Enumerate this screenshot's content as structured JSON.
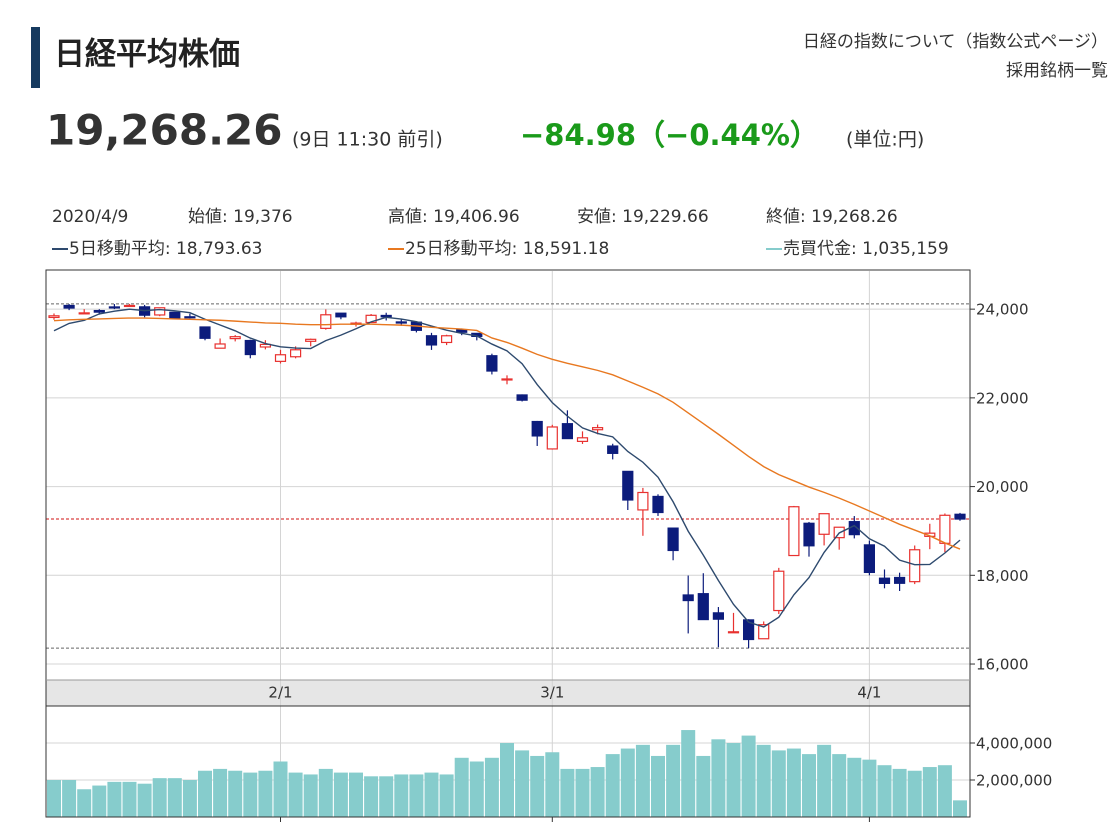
{
  "header": {
    "title": "日経平均株価",
    "links": [
      "日経の指数について（指数公式ページ）",
      "採用銘柄一覧"
    ],
    "price": "19,268.26",
    "time": "(9日 11:30 前引)",
    "change": "−84.98（−0.44%）",
    "unit": "(単位:円)"
  },
  "chart_data": [
    {
      "type": "candlestick",
      "date_label": "2020/4/9",
      "ohlc_labels": [
        "始値: 19,376",
        "高値: 19,406.96",
        "安値: 19,229.66",
        "終値: 19,268.26"
      ],
      "categories": [
        null,
        null,
        null,
        null,
        null,
        null,
        null,
        null,
        null,
        null,
        null,
        null,
        null,
        null,
        null,
        "2/1",
        null,
        null,
        null,
        null,
        null,
        null,
        null,
        null,
        null,
        null,
        null,
        null,
        null,
        null,
        null,
        null,
        null,
        "3/1",
        null,
        null,
        null,
        null,
        null,
        null,
        null,
        null,
        null,
        null,
        null,
        null,
        null,
        null,
        null,
        null,
        null,
        null,
        null,
        null,
        "4/1",
        null,
        null,
        null,
        null,
        null,
        null
      ],
      "open": [
        23813,
        24083,
        23916,
        23968,
        24050,
        24079,
        24052,
        23869,
        23929,
        23828,
        23598,
        23120,
        23336,
        23293,
        23147,
        22823,
        22927,
        23275,
        23567,
        23909,
        23658,
        23699,
        23858,
        23712,
        23706,
        23400,
        23249,
        23533,
        23454,
        22950,
        22417,
        22066,
        21467,
        20849,
        21418,
        21019,
        21282,
        20914,
        20343,
        19474,
        19778,
        19064,
        17557,
        17586,
        17154,
        16726,
        16995,
        16570,
        17206,
        18446,
        19173,
        18925,
        18849,
        19210,
        18686,
        17935,
        17951,
        17857,
        18878,
        18721,
        19376
      ],
      "high": [
        23903,
        24115,
        24000,
        23999,
        24115,
        24118,
        24096,
        24031,
        23933,
        23897,
        23605,
        23339,
        23415,
        23311,
        23300,
        23084,
        23161,
        23336,
        23995,
        23909,
        23717,
        23891,
        23919,
        23788,
        23706,
        23466,
        23423,
        23565,
        23454,
        22996,
        22508,
        22078,
        21480,
        21393,
        21719,
        21245,
        21399,
        20966,
        20347,
        19970,
        19826,
        19064,
        17995,
        18047,
        17285,
        17153,
        17009,
        16960,
        18168,
        19564,
        19203,
        19389,
        19085,
        19336,
        18784,
        18132,
        18059,
        18672,
        19162,
        19394,
        19406.96
      ],
      "low": [
        23761,
        23978,
        23901,
        23876,
        24001,
        24050,
        23816,
        23841,
        23769,
        23790,
        23298,
        23115,
        23273,
        22892,
        23093,
        22775,
        22891,
        23163,
        23537,
        23772,
        23607,
        23698,
        23745,
        23624,
        23475,
        23081,
        23190,
        23413,
        23296,
        22528,
        22306,
        21919,
        20916,
        20834,
        21091,
        20961,
        21179,
        20613,
        19472,
        18891,
        19338,
        18339,
        16690,
        17002,
        16379,
        16726,
        16358,
        16570,
        17128,
        18446,
        18421,
        18674,
        18578,
        18832,
        18000,
        17707,
        17646,
        17802,
        18589,
        18521,
        19229.66
      ],
      "close": [
        23850,
        24025,
        23916,
        23933,
        24041,
        24083,
        23864,
        24031,
        23795,
        23827,
        23343,
        23215,
        23379,
        22977,
        23205,
        22972,
        23084,
        23320,
        23873,
        23827,
        23685,
        23861,
        23827,
        23687,
        23523,
        23193,
        23400,
        23479,
        23386,
        22605,
        22426,
        21948,
        21142,
        21344,
        21082,
        21100,
        21329,
        20749,
        19698,
        19867,
        19416,
        18560,
        17431,
        17002,
        17011,
        16727,
        16553,
        16887,
        18092,
        19546,
        18665,
        19389,
        19084,
        18917,
        18065,
        17818,
        17820,
        18576,
        18950,
        19353,
        19268.26
      ],
      "up_color": "#e8312f",
      "down_color": "#0c1c7c",
      "series": [
        {
          "name": "5日移動平均: 18,793.63",
          "color": "#2e4a6e",
          "values": [
            23514,
            23679,
            23747,
            23893,
            23953,
            24000,
            23967,
            23990,
            23963,
            23920,
            23772,
            23642,
            23512,
            23348,
            23224,
            23150,
            23123,
            23112,
            23291,
            23415,
            23558,
            23713,
            23815,
            23777,
            23717,
            23618,
            23526,
            23456,
            23396,
            23213,
            23059,
            22769,
            22301,
            21893,
            21588,
            21323,
            21199,
            21121,
            20792,
            20549,
            20212,
            19658,
            18994,
            18455,
            17884,
            17346,
            16945,
            16836,
            17054,
            17561,
            17949,
            18516,
            18955,
            19120,
            18824,
            18655,
            18341,
            18239,
            18246,
            18503,
            18793.63
          ]
        },
        {
          "name": "25日移動平均: 18,591.18",
          "color": "#e87820",
          "values": [
            23740,
            23760,
            23770,
            23780,
            23790,
            23800,
            23800,
            23790,
            23780,
            23770,
            23760,
            23750,
            23730,
            23710,
            23690,
            23680,
            23660,
            23650,
            23650,
            23660,
            23660,
            23660,
            23650,
            23640,
            23620,
            23590,
            23570,
            23550,
            23520,
            23350,
            23250,
            23120,
            22980,
            22870,
            22780,
            22700,
            22620,
            22520,
            22380,
            22240,
            22090,
            21900,
            21660,
            21420,
            21180,
            20930,
            20680,
            20450,
            20270,
            20130,
            19990,
            19870,
            19740,
            19600,
            19450,
            19300,
            19150,
            19020,
            18890,
            18730,
            18591.18
          ]
        }
      ],
      "ylim": [
        15640,
        24860
      ],
      "yticks": [
        {
          "value": 16000,
          "label": "16,000"
        },
        {
          "value": 18000,
          "label": "18,000"
        },
        {
          "value": 20000,
          "label": "20,000"
        },
        {
          "value": 22000,
          "label": "22,000"
        },
        {
          "value": 24000,
          "label": "24,000"
        }
      ],
      "grid": true
    },
    {
      "type": "bar",
      "series": [
        {
          "name": "売買代金: 1,035,159",
          "color": "#86cccc",
          "values": [
            2000000,
            2000000,
            1500000,
            1700000,
            1900000,
            1900000,
            1800000,
            2100000,
            2100000,
            2000000,
            2500000,
            2600000,
            2500000,
            2400000,
            2500000,
            3000000,
            2400000,
            2300000,
            2600000,
            2400000,
            2400000,
            2200000,
            2200000,
            2300000,
            2300000,
            2400000,
            2300000,
            3200000,
            3000000,
            3200000,
            4000000,
            3600000,
            3300000,
            3500000,
            2600000,
            2600000,
            2700000,
            3400000,
            3700000,
            3900000,
            3300000,
            3900000,
            4700000,
            3300000,
            4200000,
            4000000,
            4400000,
            3900000,
            3600000,
            3700000,
            3400000,
            3900000,
            3400000,
            3200000,
            3100000,
            2800000,
            2600000,
            2500000,
            2700000,
            2800000,
            900000
          ]
        }
      ],
      "ylim": [
        0,
        6000000
      ],
      "yticks": [
        {
          "value": 2000000,
          "label": "2,000,000"
        },
        {
          "value": 4000000,
          "label": "4,000,000"
        }
      ],
      "grid": true
    }
  ]
}
